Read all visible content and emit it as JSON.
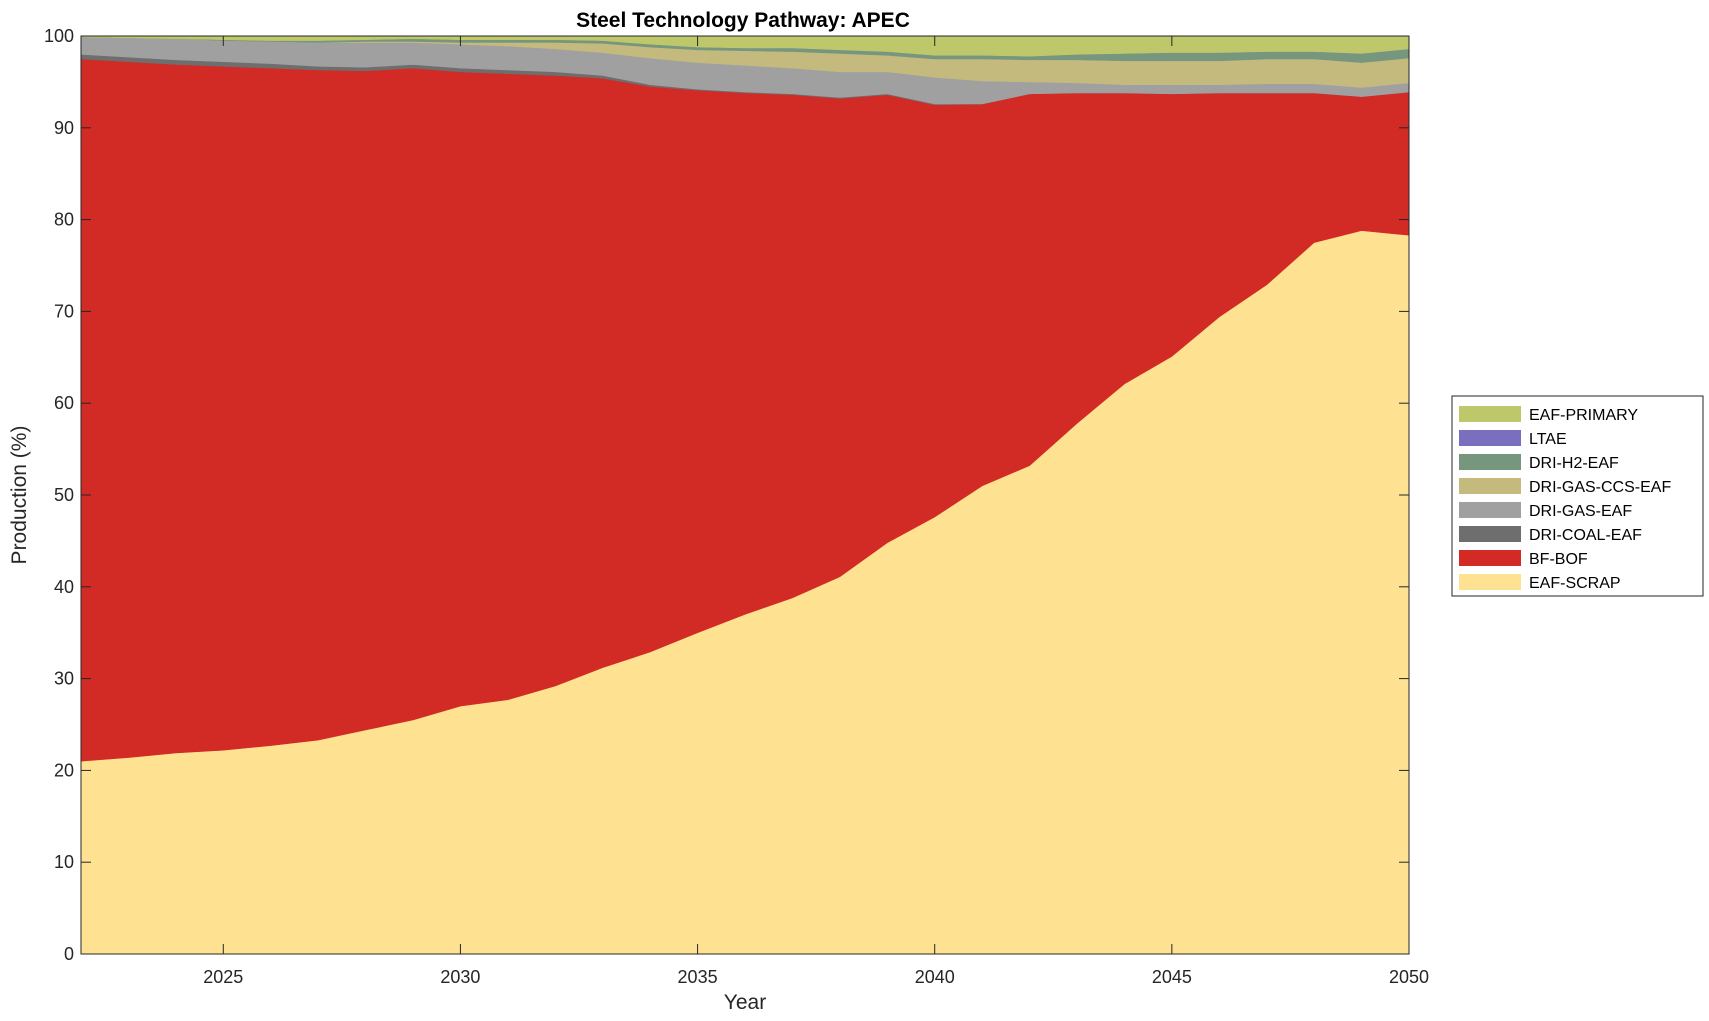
{
  "chart_data": {
    "type": "area",
    "stacked": true,
    "title": "Steel Technology Pathway: APEC",
    "xlabel": "Year",
    "ylabel": "Production (%)",
    "xlim": [
      2022,
      2050
    ],
    "ylim": [
      0,
      100
    ],
    "xticks": [
      2025,
      2030,
      2035,
      2040,
      2045,
      2050
    ],
    "yticks": [
      0,
      10,
      20,
      30,
      40,
      50,
      60,
      70,
      80,
      90,
      100
    ],
    "grid": false,
    "legend_position": "right",
    "x": [
      2022,
      2023,
      2024,
      2025,
      2026,
      2027,
      2028,
      2029,
      2030,
      2031,
      2032,
      2033,
      2034,
      2035,
      2036,
      2037,
      2038,
      2039,
      2040,
      2041,
      2042,
      2043,
      2044,
      2045,
      2046,
      2047,
      2048,
      2049,
      2050
    ],
    "series": [
      {
        "name": "EAF-SCRAP",
        "color": "#FFE291",
        "values": [
          21.0,
          21.4,
          21.9,
          22.2,
          22.7,
          23.3,
          24.4,
          25.5,
          27.0,
          27.7,
          29.2,
          31.2,
          32.9,
          35.0,
          37.0,
          38.8,
          41.1,
          44.8,
          47.6,
          51.0,
          53.2,
          57.8,
          62.1,
          65.1,
          69.4,
          72.9,
          77.5,
          78.8,
          78.3
        ]
      },
      {
        "name": "BF-BOF",
        "color": "#D22A25",
        "values": [
          76.5,
          75.8,
          75.0,
          74.5,
          73.8,
          73.0,
          71.8,
          71.0,
          69.1,
          68.2,
          66.5,
          64.2,
          61.6,
          59.1,
          56.8,
          54.8,
          52.1,
          48.8,
          44.9,
          41.6,
          40.5,
          36.0,
          31.7,
          28.6,
          24.4,
          20.9,
          16.3,
          14.6,
          15.6
        ]
      },
      {
        "name": "DRI-COAL-EAF",
        "color": "#6E6E6E",
        "values": [
          0.5,
          0.5,
          0.5,
          0.5,
          0.5,
          0.4,
          0.4,
          0.4,
          0.4,
          0.4,
          0.4,
          0.3,
          0.2,
          0.1,
          0.1,
          0.1,
          0.1,
          0.1,
          0.1,
          0.0,
          0.0,
          0.0,
          0.0,
          0.0,
          0.0,
          0.0,
          0.0,
          0.0,
          0.0
        ]
      },
      {
        "name": "DRI-GAS-EAF",
        "color": "#A0A0A0",
        "values": [
          1.9,
          2.1,
          2.3,
          2.3,
          2.4,
          2.6,
          2.7,
          2.4,
          2.6,
          2.6,
          2.5,
          2.5,
          2.9,
          2.9,
          2.9,
          2.8,
          2.8,
          2.4,
          2.9,
          2.5,
          1.3,
          1.1,
          0.9,
          1.0,
          0.9,
          1.0,
          1.0,
          1.0,
          1.0
        ]
      },
      {
        "name": "DRI-GAS-CCS-EAF",
        "color": "#C4BA7E",
        "values": [
          0.0,
          0.0,
          0.0,
          0.0,
          0.0,
          0.0,
          0.1,
          0.1,
          0.2,
          0.4,
          0.7,
          1.0,
          1.2,
          1.4,
          1.6,
          1.8,
          2.0,
          1.8,
          2.0,
          2.4,
          2.4,
          2.5,
          2.6,
          2.6,
          2.6,
          2.7,
          2.7,
          2.7,
          2.7
        ]
      },
      {
        "name": "DRI-H2-EAF",
        "color": "#76967D",
        "values": [
          0.0,
          0.0,
          0.0,
          0.1,
          0.1,
          0.2,
          0.2,
          0.3,
          0.3,
          0.3,
          0.3,
          0.3,
          0.3,
          0.3,
          0.3,
          0.4,
          0.4,
          0.4,
          0.4,
          0.4,
          0.4,
          0.6,
          0.8,
          0.9,
          0.9,
          0.8,
          0.8,
          1.0,
          1.0
        ]
      },
      {
        "name": "LTAE",
        "color": "#7A6FBE",
        "values": [
          0,
          0,
          0,
          0,
          0,
          0,
          0,
          0,
          0,
          0,
          0,
          0,
          0,
          0,
          0,
          0,
          0,
          0,
          0,
          0,
          0,
          0,
          0,
          0,
          0,
          0,
          0,
          0,
          0
        ]
      },
      {
        "name": "EAF-PRIMARY",
        "color": "#BEC86A",
        "values": [
          0.1,
          0.2,
          0.3,
          0.4,
          0.5,
          0.5,
          0.4,
          0.3,
          0.4,
          0.4,
          0.4,
          0.5,
          0.9,
          1.2,
          1.3,
          1.3,
          1.5,
          1.7,
          2.1,
          2.1,
          2.2,
          2.0,
          1.9,
          1.8,
          1.8,
          1.7,
          1.7,
          1.9,
          1.4
        ]
      }
    ],
    "legend_order": [
      "EAF-PRIMARY",
      "LTAE",
      "DRI-H2-EAF",
      "DRI-GAS-CCS-EAF",
      "DRI-GAS-EAF",
      "DRI-COAL-EAF",
      "BF-BOF",
      "EAF-SCRAP"
    ]
  }
}
